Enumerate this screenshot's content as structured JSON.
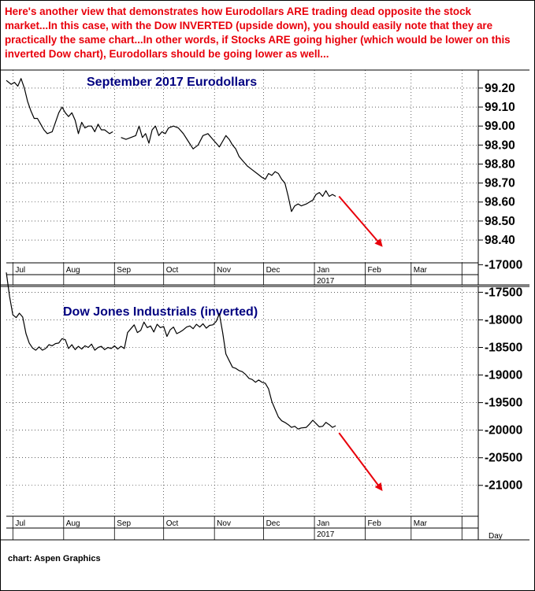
{
  "headline": "Here's another view that demonstrates how Eurodollars ARE trading dead opposite the stock market...In this case, with the Dow INVERTED (upside down), you should easily note that they are practically the same chart...In other words, if Stocks ARE going higher (which would be lower on this inverted Dow chart), Eurodollars should be going lower as well...",
  "credit": "chart: Aspen Graphics",
  "colors": {
    "headline": "#e8000b",
    "title": "#000080",
    "arrow": "#e8000b",
    "line": "#000000",
    "grid": "#000000"
  },
  "chart_data": [
    {
      "type": "line",
      "title": "September 2017 Eurodollars",
      "xlabel": "",
      "ylabel": "",
      "grid": true,
      "ylim": [
        98.28,
        99.27
      ],
      "yticks": [
        98.4,
        98.5,
        98.6,
        98.7,
        98.8,
        98.9,
        99.0,
        99.1,
        99.2
      ],
      "ytick_labels": [
        "98.40",
        "98.50",
        "98.60",
        "98.70",
        "98.80",
        "98.90",
        "99.00",
        "99.10",
        "99.20"
      ],
      "xlim": [
        "2016-06-27",
        "2017-04-10"
      ],
      "xtick_labels": [
        "Jul",
        "Aug",
        "Sep",
        "Oct",
        "Nov",
        "Dec",
        "Jan",
        "Feb",
        "Mar"
      ],
      "year_label": "2017",
      "series": [
        {
          "segments": [
            [
              [
                "2016-06-27",
                99.24
              ],
              [
                "2016-06-30",
                99.22
              ],
              [
                "2016-07-02",
                99.23
              ],
              [
                "2016-07-04",
                99.21
              ],
              [
                "2016-07-06",
                99.25
              ],
              [
                "2016-07-08",
                99.2
              ],
              [
                "2016-07-10",
                99.13
              ],
              [
                "2016-07-12",
                99.08
              ],
              [
                "2016-07-14",
                99.04
              ],
              [
                "2016-07-16",
                99.04
              ],
              [
                "2016-07-18",
                99.01
              ],
              [
                "2016-07-20",
                98.98
              ],
              [
                "2016-07-22",
                98.96
              ],
              [
                "2016-07-25",
                98.97
              ],
              [
                "2016-07-27",
                99.02
              ],
              [
                "2016-07-29",
                99.07
              ],
              [
                "2016-07-31",
                99.1
              ],
              [
                "2016-08-02",
                99.07
              ],
              [
                "2016-08-04",
                99.05
              ],
              [
                "2016-08-06",
                99.07
              ],
              [
                "2016-08-08",
                99.03
              ],
              [
                "2016-08-10",
                98.96
              ],
              [
                "2016-08-12",
                99.02
              ],
              [
                "2016-08-14",
                98.99
              ],
              [
                "2016-08-16",
                99.0
              ],
              [
                "2016-08-18",
                99.0
              ],
              [
                "2016-08-20",
                98.97
              ],
              [
                "2016-08-22",
                99.01
              ],
              [
                "2016-08-24",
                98.98
              ],
              [
                "2016-08-26",
                98.98
              ],
              [
                "2016-08-29",
                98.96
              ],
              [
                "2016-08-31",
                98.97
              ]
            ],
            [
              [
                "2016-09-05",
                98.94
              ],
              [
                "2016-09-08",
                98.93
              ],
              [
                "2016-09-11",
                98.94
              ],
              [
                "2016-09-14",
                98.95
              ],
              [
                "2016-09-16",
                99.0
              ],
              [
                "2016-09-18",
                98.94
              ],
              [
                "2016-09-20",
                98.96
              ],
              [
                "2016-09-22",
                98.91
              ],
              [
                "2016-09-24",
                98.98
              ],
              [
                "2016-09-26",
                99.0
              ],
              [
                "2016-09-28",
                98.95
              ],
              [
                "2016-09-30",
                98.97
              ],
              [
                "2016-10-02",
                98.96
              ],
              [
                "2016-10-04",
                98.99
              ],
              [
                "2016-10-07",
                99.0
              ],
              [
                "2016-10-10",
                98.99
              ],
              [
                "2016-10-13",
                98.96
              ],
              [
                "2016-10-16",
                98.92
              ],
              [
                "2016-10-19",
                98.88
              ],
              [
                "2016-10-22",
                98.9
              ],
              [
                "2016-10-25",
                98.95
              ],
              [
                "2016-10-28",
                98.96
              ],
              [
                "2016-10-31",
                98.93
              ],
              [
                "2016-11-02",
                98.91
              ],
              [
                "2016-11-04",
                98.89
              ],
              [
                "2016-11-06",
                98.92
              ],
              [
                "2016-11-08",
                98.95
              ],
              [
                "2016-11-10",
                98.93
              ],
              [
                "2016-11-12",
                98.9
              ],
              [
                "2016-11-14",
                98.88
              ],
              [
                "2016-11-16",
                98.84
              ],
              [
                "2016-11-18",
                98.82
              ],
              [
                "2016-11-21",
                98.79
              ],
              [
                "2016-11-24",
                98.77
              ],
              [
                "2016-11-27",
                98.75
              ],
              [
                "2016-11-30",
                98.73
              ],
              [
                "2016-12-02",
                98.72
              ],
              [
                "2016-12-04",
                98.75
              ],
              [
                "2016-12-06",
                98.74
              ],
              [
                "2016-12-08",
                98.76
              ],
              [
                "2016-12-10",
                98.75
              ],
              [
                "2016-12-12",
                98.72
              ],
              [
                "2016-12-14",
                98.7
              ],
              [
                "2016-12-16",
                98.63
              ],
              [
                "2016-12-18",
                98.55
              ],
              [
                "2016-12-20",
                98.58
              ],
              [
                "2016-12-22",
                98.59
              ],
              [
                "2016-12-24",
                98.58
              ],
              [
                "2016-12-27",
                98.59
              ],
              [
                "2016-12-29",
                98.6
              ],
              [
                "2016-12-31",
                98.61
              ],
              [
                "2017-01-02",
                98.64
              ],
              [
                "2017-01-04",
                98.65
              ],
              [
                "2017-01-06",
                98.63
              ],
              [
                "2017-01-08",
                98.66
              ],
              [
                "2017-01-10",
                98.63
              ],
              [
                "2017-01-12",
                98.64
              ],
              [
                "2017-01-14",
                98.63
              ]
            ]
          ]
        }
      ],
      "annotations": [
        {
          "type": "arrow",
          "from": [
            "2017-01-16",
            98.63
          ],
          "to": [
            "2017-02-11",
            98.37
          ]
        }
      ]
    },
    {
      "type": "line",
      "title": "Dow Jones Industrials (inverted)",
      "xlabel": "",
      "ylabel": "",
      "grid": true,
      "inverted": true,
      "ylim": [
        17480,
        21560
      ],
      "yticks": [
        17000,
        17500,
        18000,
        18500,
        19000,
        19500,
        20000,
        20500,
        21000
      ],
      "ytick_labels": [
        "-17000",
        "-17500",
        "-18000",
        "-18500",
        "-19000",
        "-19500",
        "-20000",
        "-20500",
        "-21000"
      ],
      "xlim": [
        "2016-06-27",
        "2017-04-10"
      ],
      "xtick_labels": [
        "Jul",
        "Aug",
        "Sep",
        "Oct",
        "Nov",
        "Dec",
        "Jan",
        "Feb",
        "Mar"
      ],
      "year_label": "2017",
      "period_label": "Day",
      "series": [
        {
          "segments": [
            [
              [
                "2016-06-27",
                17140
              ],
              [
                "2016-06-29",
                17580
              ],
              [
                "2016-07-01",
                17910
              ],
              [
                "2016-07-03",
                17960
              ],
              [
                "2016-07-05",
                17880
              ],
              [
                "2016-07-07",
                17950
              ],
              [
                "2016-07-09",
                18250
              ],
              [
                "2016-07-11",
                18420
              ],
              [
                "2016-07-13",
                18510
              ],
              [
                "2016-07-15",
                18550
              ],
              [
                "2016-07-17",
                18490
              ],
              [
                "2016-07-19",
                18550
              ],
              [
                "2016-07-21",
                18520
              ],
              [
                "2016-07-23",
                18450
              ],
              [
                "2016-07-25",
                18470
              ],
              [
                "2016-07-27",
                18430
              ],
              [
                "2016-07-29",
                18420
              ],
              [
                "2016-07-31",
                18340
              ],
              [
                "2016-08-02",
                18360
              ],
              [
                "2016-08-04",
                18520
              ],
              [
                "2016-08-06",
                18450
              ],
              [
                "2016-08-08",
                18540
              ],
              [
                "2016-08-10",
                18480
              ],
              [
                "2016-08-12",
                18530
              ],
              [
                "2016-08-14",
                18470
              ],
              [
                "2016-08-16",
                18500
              ],
              [
                "2016-08-18",
                18440
              ],
              [
                "2016-08-20",
                18550
              ],
              [
                "2016-08-22",
                18500
              ],
              [
                "2016-08-24",
                18480
              ],
              [
                "2016-08-26",
                18540
              ],
              [
                "2016-08-28",
                18500
              ],
              [
                "2016-08-30",
                18520
              ],
              [
                "2016-09-01",
                18470
              ],
              [
                "2016-09-03",
                18530
              ],
              [
                "2016-09-05",
                18480
              ],
              [
                "2016-09-07",
                18520
              ],
              [
                "2016-09-09",
                18230
              ],
              [
                "2016-09-11",
                18160
              ],
              [
                "2016-09-13",
                18090
              ],
              [
                "2016-09-15",
                18230
              ],
              [
                "2016-09-17",
                18190
              ],
              [
                "2016-09-19",
                18040
              ],
              [
                "2016-09-21",
                18140
              ],
              [
                "2016-09-23",
                18110
              ],
              [
                "2016-09-25",
                18220
              ],
              [
                "2016-09-27",
                18080
              ],
              [
                "2016-09-29",
                18140
              ],
              [
                "2016-10-01",
                18120
              ],
              [
                "2016-10-03",
                18300
              ],
              [
                "2016-10-05",
                18180
              ],
              [
                "2016-10-07",
                18130
              ],
              [
                "2016-10-09",
                18250
              ],
              [
                "2016-10-11",
                18220
              ],
              [
                "2016-10-13",
                18180
              ],
              [
                "2016-10-15",
                18130
              ],
              [
                "2016-10-17",
                18110
              ],
              [
                "2016-10-19",
                18160
              ],
              [
                "2016-10-21",
                18080
              ],
              [
                "2016-10-23",
                18130
              ],
              [
                "2016-10-25",
                18070
              ],
              [
                "2016-10-27",
                18150
              ],
              [
                "2016-10-29",
                18100
              ],
              [
                "2016-10-31",
                18090
              ],
              [
                "2016-11-02",
                18030
              ],
              [
                "2016-11-04",
                17890
              ],
              [
                "2016-11-06",
                18230
              ],
              [
                "2016-11-08",
                18620
              ],
              [
                "2016-11-10",
                18740
              ],
              [
                "2016-11-12",
                18860
              ],
              [
                "2016-11-14",
                18880
              ],
              [
                "2016-11-16",
                18920
              ],
              [
                "2016-11-18",
                18940
              ],
              [
                "2016-11-20",
                18990
              ],
              [
                "2016-11-22",
                19060
              ],
              [
                "2016-11-24",
                19080
              ],
              [
                "2016-11-26",
                19130
              ],
              [
                "2016-11-28",
                19090
              ],
              [
                "2016-11-30",
                19130
              ],
              [
                "2016-12-02",
                19150
              ],
              [
                "2016-12-04",
                19250
              ],
              [
                "2016-12-06",
                19480
              ],
              [
                "2016-12-08",
                19620
              ],
              [
                "2016-12-10",
                19760
              ],
              [
                "2016-12-12",
                19830
              ],
              [
                "2016-12-14",
                19860
              ],
              [
                "2016-12-16",
                19900
              ],
              [
                "2016-12-18",
                19950
              ],
              [
                "2016-12-20",
                19930
              ],
              [
                "2016-12-22",
                19980
              ],
              [
                "2016-12-24",
                19960
              ],
              [
                "2016-12-27",
                19950
              ],
              [
                "2016-12-29",
                19890
              ],
              [
                "2016-12-31",
                19820
              ],
              [
                "2017-01-02",
                19880
              ],
              [
                "2017-01-04",
                19940
              ],
              [
                "2017-01-06",
                19930
              ],
              [
                "2017-01-08",
                19860
              ],
              [
                "2017-01-10",
                19900
              ],
              [
                "2017-01-12",
                19950
              ],
              [
                "2017-01-14",
                19920
              ]
            ]
          ]
        }
      ],
      "annotations": [
        {
          "type": "arrow",
          "from": [
            "2017-01-16",
            20050
          ],
          "to": [
            "2017-02-11",
            21080
          ]
        }
      ]
    }
  ]
}
